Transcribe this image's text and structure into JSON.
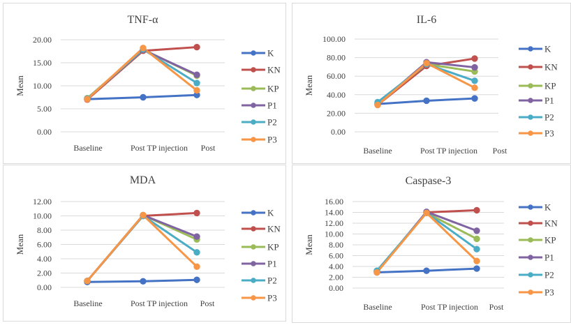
{
  "chart_data": [
    {
      "type": "line",
      "title": "TNF-α",
      "ylabel": "Mean",
      "xlabel": "",
      "categories": [
        "Baseline",
        "Post TP injection",
        "Post"
      ],
      "ylim": [
        0,
        20
      ],
      "yticks": [
        "0.00",
        "5.00",
        "10.00",
        "15.00",
        "20.00"
      ],
      "grid": true,
      "legend": "right",
      "series": [
        {
          "name": "K",
          "color": "#4472C4",
          "values": [
            7.1,
            7.5,
            8.0
          ]
        },
        {
          "name": "KN",
          "color": "#C0504D",
          "values": [
            7.0,
            17.6,
            18.4
          ]
        },
        {
          "name": "KP",
          "color": "#9BBB59",
          "values": [
            7.3,
            17.9,
            12.2
          ]
        },
        {
          "name": "P1",
          "color": "#8064A2",
          "values": [
            7.2,
            17.8,
            12.4
          ]
        },
        {
          "name": "P2",
          "color": "#4BACC6",
          "values": [
            7.2,
            17.9,
            10.6
          ]
        },
        {
          "name": "P3",
          "color": "#F79646",
          "values": [
            7.1,
            18.2,
            9.0
          ]
        }
      ]
    },
    {
      "type": "line",
      "title": "IL-6",
      "ylabel": "Mean",
      "xlabel": "",
      "categories": [
        "Baseline",
        "Post TP injection",
        "Post"
      ],
      "ylim": [
        0,
        100
      ],
      "yticks": [
        "0.00",
        "20.00",
        "40.00",
        "60.00",
        "80.00",
        "100.00"
      ],
      "grid": true,
      "legend": "right",
      "series": [
        {
          "name": "K",
          "color": "#4472C4",
          "values": [
            30,
            33.5,
            36
          ]
        },
        {
          "name": "KN",
          "color": "#C0504D",
          "values": [
            29,
            71,
            79
          ]
        },
        {
          "name": "KP",
          "color": "#9BBB59",
          "values": [
            31,
            73,
            65
          ]
        },
        {
          "name": "P1",
          "color": "#8064A2",
          "values": [
            30,
            75,
            69.5
          ]
        },
        {
          "name": "P2",
          "color": "#4BACC6",
          "values": [
            32,
            73,
            55
          ]
        },
        {
          "name": "P3",
          "color": "#F79646",
          "values": [
            29,
            74,
            47.5
          ]
        }
      ]
    },
    {
      "type": "line",
      "title": "MDA",
      "ylabel": "Mean",
      "xlabel": "",
      "categories": [
        "Baseline",
        "Post TP injection",
        "Post"
      ],
      "ylim": [
        0,
        12
      ],
      "yticks": [
        "0.00",
        "2.00",
        "4.00",
        "6.00",
        "8.00",
        "10.00",
        "12.00"
      ],
      "grid": true,
      "legend": "right",
      "series": [
        {
          "name": "K",
          "color": "#4472C4",
          "values": [
            0.75,
            0.85,
            1.05
          ]
        },
        {
          "name": "KN",
          "color": "#C0504D",
          "values": [
            0.9,
            10.0,
            10.4
          ]
        },
        {
          "name": "KP",
          "color": "#9BBB59",
          "values": [
            0.9,
            10.1,
            6.7
          ]
        },
        {
          "name": "P1",
          "color": "#8064A2",
          "values": [
            0.9,
            10.1,
            7.1
          ]
        },
        {
          "name": "P2",
          "color": "#4BACC6",
          "values": [
            0.9,
            10.0,
            4.9
          ]
        },
        {
          "name": "P3",
          "color": "#F79646",
          "values": [
            0.9,
            10.1,
            2.9
          ]
        }
      ]
    },
    {
      "type": "line",
      "title": "Caspase-3",
      "ylabel": "Mean",
      "xlabel": "",
      "categories": [
        "Baseline",
        "Post TP injection",
        "Post"
      ],
      "ylim": [
        0,
        16
      ],
      "yticks": [
        "0.00",
        "2.00",
        "4.00",
        "6.00",
        "8.00",
        "10.00",
        "12.00",
        "14.00",
        "16.00"
      ],
      "grid": true,
      "legend": "right",
      "series": [
        {
          "name": "K",
          "color": "#4472C4",
          "values": [
            2.9,
            3.2,
            3.6
          ]
        },
        {
          "name": "KN",
          "color": "#C0504D",
          "values": [
            3.0,
            14.0,
            14.4
          ]
        },
        {
          "name": "KP",
          "color": "#9BBB59",
          "values": [
            3.2,
            13.9,
            9.1
          ]
        },
        {
          "name": "P1",
          "color": "#8064A2",
          "values": [
            3.0,
            14.1,
            10.6
          ]
        },
        {
          "name": "P2",
          "color": "#4BACC6",
          "values": [
            3.2,
            13.9,
            7.2
          ]
        },
        {
          "name": "P3",
          "color": "#F79646",
          "values": [
            2.9,
            13.9,
            5.0
          ]
        }
      ]
    }
  ]
}
